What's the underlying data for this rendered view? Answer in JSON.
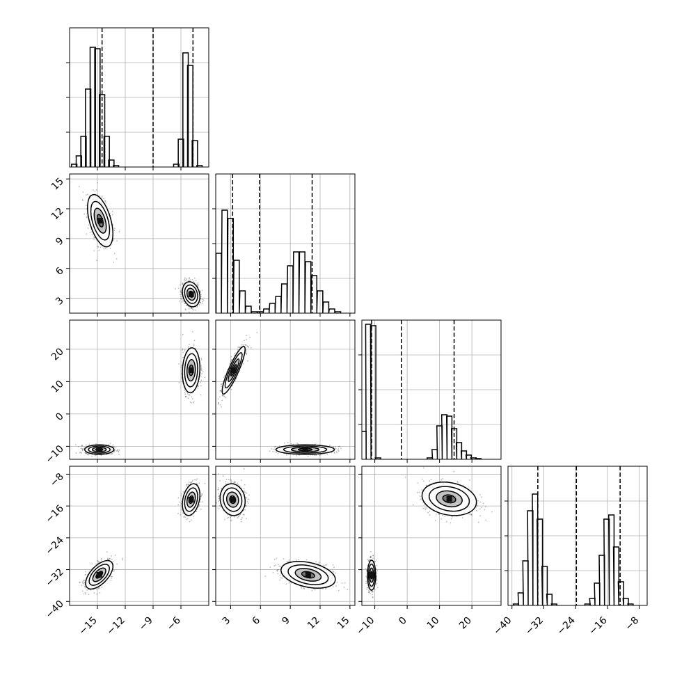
{
  "chart_data": {
    "type": "corner",
    "parameters": 4,
    "grid": true,
    "colors": {
      "line": "#000000",
      "grid": "#b0b0b0",
      "points": "#3a3a3a"
    },
    "axes": [
      {
        "index": 0,
        "range": [
          -18,
          -3
        ],
        "ticks": [
          -15,
          -12,
          -9,
          -6
        ],
        "tick_labels": [
          "−15",
          "−12",
          "−9",
          "−6"
        ],
        "quantiles": [
          -14.5,
          -9.0,
          -4.7
        ]
      },
      {
        "index": 1,
        "range": [
          1.5,
          15.5
        ],
        "ticks": [
          3,
          6,
          9,
          12,
          15
        ],
        "tick_labels": [
          "3",
          "6",
          "9",
          "12",
          "15"
        ],
        "quantiles": [
          3.2,
          5.9,
          11.2
        ]
      },
      {
        "index": 2,
        "range": [
          -14,
          29
        ],
        "ticks": [
          -10,
          0,
          10,
          20
        ],
        "tick_labels": [
          "−10",
          "0",
          "10",
          "20"
        ],
        "quantiles": [
          -11.0,
          -1.8,
          14.5
        ]
      },
      {
        "index": 3,
        "range": [
          -41,
          -6
        ],
        "ticks": [
          -40,
          -32,
          -24,
          -16,
          -8
        ],
        "tick_labels": [
          "−40",
          "−32",
          "−24",
          "−16",
          "−8"
        ],
        "quantiles": [
          -33.5,
          -23.8,
          -12.8
        ]
      }
    ],
    "histograms": [
      {
        "param": 0,
        "bins": [
          [
            -17.5,
            0.02
          ],
          [
            -17.0,
            0.08
          ],
          [
            -16.5,
            0.22
          ],
          [
            -16.0,
            0.56
          ],
          [
            -15.5,
            0.86
          ],
          [
            -15.0,
            0.85
          ],
          [
            -14.5,
            0.52
          ],
          [
            -14.0,
            0.22
          ],
          [
            -13.5,
            0.05
          ],
          [
            -13.0,
            0.01
          ],
          [
            -6.5,
            0.02
          ],
          [
            -6.0,
            0.2
          ],
          [
            -5.5,
            0.82
          ],
          [
            -5.0,
            0.73
          ],
          [
            -4.5,
            0.19
          ],
          [
            -4.0,
            0.01
          ]
        ]
      },
      {
        "param": 1,
        "bins": [
          [
            1.8,
            0.43
          ],
          [
            2.4,
            0.74
          ],
          [
            3.0,
            0.68
          ],
          [
            3.6,
            0.38
          ],
          [
            4.2,
            0.16
          ],
          [
            4.8,
            0.05
          ],
          [
            5.4,
            0.01
          ],
          [
            6.0,
            0.01
          ],
          [
            6.6,
            0.03
          ],
          [
            7.2,
            0.07
          ],
          [
            7.8,
            0.12
          ],
          [
            8.4,
            0.21
          ],
          [
            9.0,
            0.34
          ],
          [
            9.6,
            0.44
          ],
          [
            10.2,
            0.44
          ],
          [
            10.8,
            0.37
          ],
          [
            11.4,
            0.27
          ],
          [
            12.0,
            0.16
          ],
          [
            12.6,
            0.08
          ],
          [
            13.2,
            0.03
          ],
          [
            13.8,
            0.01
          ]
        ]
      },
      {
        "param": 2,
        "bins": [
          [
            -13.5,
            0.2
          ],
          [
            -12.0,
            0.97
          ],
          [
            -10.5,
            0.96
          ],
          [
            -9.0,
            0.01
          ],
          [
            7.0,
            0.01
          ],
          [
            8.5,
            0.07
          ],
          [
            10.0,
            0.24
          ],
          [
            11.5,
            0.32
          ],
          [
            13.0,
            0.31
          ],
          [
            14.5,
            0.22
          ],
          [
            16.0,
            0.12
          ],
          [
            17.5,
            0.06
          ],
          [
            19.0,
            0.03
          ],
          [
            20.5,
            0.01
          ],
          [
            22.0,
            0.005
          ]
        ]
      },
      {
        "param": 3,
        "bins": [
          [
            -39.0,
            0.01
          ],
          [
            -37.8,
            0.09
          ],
          [
            -36.6,
            0.32
          ],
          [
            -35.4,
            0.68
          ],
          [
            -34.2,
            0.8
          ],
          [
            -33.0,
            0.62
          ],
          [
            -31.8,
            0.28
          ],
          [
            -30.6,
            0.08
          ],
          [
            -29.4,
            0.01
          ],
          [
            -21.0,
            0.01
          ],
          [
            -19.8,
            0.05
          ],
          [
            -18.6,
            0.16
          ],
          [
            -17.4,
            0.36
          ],
          [
            -16.2,
            0.62
          ],
          [
            -15.0,
            0.65
          ],
          [
            -13.8,
            0.42
          ],
          [
            -12.6,
            0.17
          ],
          [
            -11.4,
            0.05
          ],
          [
            -10.2,
            0.01
          ]
        ]
      }
    ],
    "scatter_2d": [
      {
        "x_param": 0,
        "y_param": 1,
        "clusters": [
          {
            "center": [
              -14.7,
              10.8
            ],
            "sd": [
              0.65,
              1.25
            ],
            "corr": -0.5
          },
          {
            "center": [
              -4.9,
              3.4
            ],
            "sd": [
              0.45,
              0.6
            ],
            "corr": -0.2
          }
        ]
      },
      {
        "x_param": 0,
        "y_param": 2,
        "clusters": [
          {
            "center": [
              -14.8,
              -11.0
            ],
            "sd": [
              0.75,
              0.7
            ],
            "corr": 0.0
          },
          {
            "center": [
              -4.9,
              13.5
            ],
            "sd": [
              0.45,
              3.3
            ],
            "corr": 0.1
          }
        ]
      },
      {
        "x_param": 0,
        "y_param": 3,
        "clusters": [
          {
            "center": [
              -14.8,
              -33.3
            ],
            "sd": [
              0.7,
              1.7
            ],
            "corr": 0.6
          },
          {
            "center": [
              -4.9,
              -14.4
            ],
            "sd": [
              0.45,
              1.9
            ],
            "corr": 0.3
          }
        ]
      },
      {
        "x_param": 1,
        "y_param": 2,
        "clusters": [
          {
            "center": [
              3.3,
              13.5
            ],
            "sd": [
              0.55,
              3.5
            ],
            "corr": 0.88
          },
          {
            "center": [
              10.5,
              -11.0
            ],
            "sd": [
              1.4,
              0.7
            ],
            "corr": 0.0
          }
        ]
      },
      {
        "x_param": 1,
        "y_param": 3,
        "clusters": [
          {
            "center": [
              3.2,
              -14.4
            ],
            "sd": [
              0.6,
              1.9
            ],
            "corr": -0.1
          },
          {
            "center": [
              10.8,
              -33.3
            ],
            "sd": [
              1.3,
              1.6
            ],
            "corr": -0.35
          }
        ]
      },
      {
        "x_param": 2,
        "y_param": 3,
        "clusters": [
          {
            "center": [
              13.0,
              -14.2
            ],
            "sd": [
              4.0,
              2.0
            ],
            "corr": -0.2
          },
          {
            "center": [
              -11.0,
              -33.4
            ],
            "sd": [
              0.6,
              1.8
            ],
            "corr": 0.0
          }
        ]
      }
    ]
  }
}
